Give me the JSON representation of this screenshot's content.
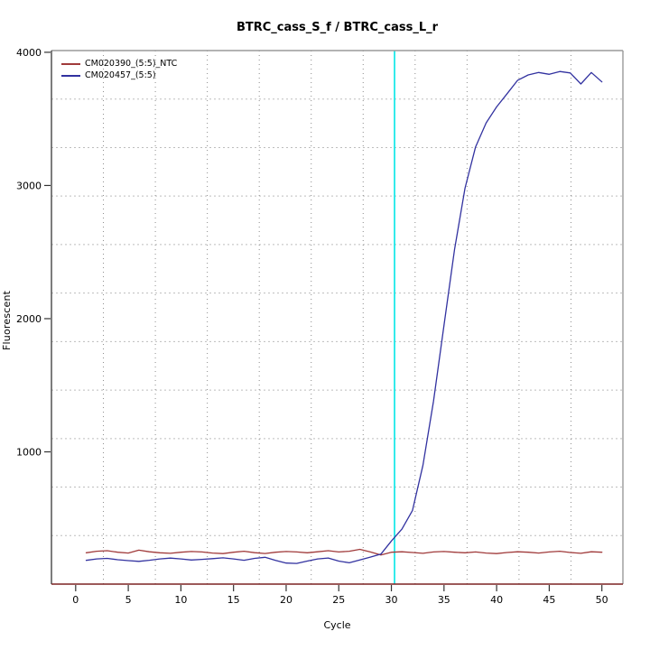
{
  "chart_data": {
    "type": "line",
    "title": "BTRC_cass_S_f / BTRC_cass_L_r",
    "xlabel": "Cycle",
    "ylabel": "Fluorescent",
    "x_ticks": [
      0,
      5,
      10,
      15,
      20,
      25,
      30,
      35,
      40,
      45,
      50
    ],
    "y_ticks": [
      1000,
      2000,
      3000,
      4000
    ],
    "xlim": [
      -2.3,
      52.0
    ],
    "ylim": [
      7,
      4013
    ],
    "x_start_cycle": 1,
    "grid": {
      "divisions_x": 11,
      "divisions_y": 11,
      "style": "dotted",
      "h_color": "#bdbdbd",
      "v_color": "#8c8c8c"
    },
    "legend_position": "top-left",
    "threshold_line": {
      "x": 30.3,
      "color": "#00E5E5"
    },
    "baseline_color": "#7B2222",
    "box_color": "#9a9a9a",
    "axis_color": "#444444",
    "tick_color": "#333333",
    "series": [
      {
        "name": "CM020390_(5:5)_NTC",
        "color": "#A03A3A",
        "values": [
          242,
          254,
          258,
          246,
          240,
          262,
          250,
          242,
          238,
          246,
          252,
          248,
          240,
          236,
          246,
          254,
          243,
          237,
          246,
          252,
          248,
          242,
          250,
          258,
          248,
          254,
          268,
          248,
          226,
          246,
          250,
          244,
          238,
          248,
          252,
          246,
          242,
          248,
          240,
          236,
          244,
          250,
          246,
          240,
          248,
          254,
          244,
          238,
          250,
          246
        ]
      },
      {
        "name": "CM020457_(5:5)",
        "color": "#3232A0",
        "values": [
          185,
          196,
          200,
          190,
          183,
          178,
          186,
          196,
          202,
          196,
          188,
          193,
          198,
          204,
          196,
          186,
          200,
          208,
          185,
          165,
          162,
          180,
          196,
          203,
          180,
          167,
          188,
          210,
          232,
          330,
          420,
          560,
          900,
          1380,
          1950,
          2520,
          2980,
          3290,
          3470,
          3590,
          3690,
          3790,
          3830,
          3848,
          3835,
          3856,
          3845,
          3762,
          3848,
          3778
        ]
      }
    ]
  }
}
